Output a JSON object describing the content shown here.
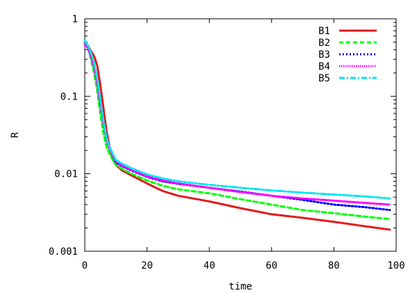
{
  "chart_data": {
    "type": "line",
    "xlabel": "time",
    "ylabel": "R",
    "xlim": [
      0,
      100
    ],
    "ylim": [
      0.001,
      1
    ],
    "y_scale": "log",
    "grid": false,
    "legend_position": "top-right",
    "x_ticks": [
      {
        "value": 0,
        "label": "0"
      },
      {
        "value": 20,
        "label": "20"
      },
      {
        "value": 40,
        "label": "40"
      },
      {
        "value": 60,
        "label": "60"
      },
      {
        "value": 80,
        "label": "80"
      },
      {
        "value": 100,
        "label": "100"
      }
    ],
    "y_ticks": [
      {
        "value": 0.001,
        "label": "0.001"
      },
      {
        "value": 0.01,
        "label": "0.01"
      },
      {
        "value": 0.1,
        "label": "0.1"
      },
      {
        "value": 1,
        "label": "1"
      }
    ],
    "x": [
      0,
      1,
      2,
      3,
      4,
      5,
      6,
      7,
      8,
      9,
      10,
      12,
      15,
      20,
      25,
      30,
      40,
      50,
      60,
      70,
      80,
      90,
      98
    ],
    "series": [
      {
        "name": "B1",
        "color": "#e41a1c",
        "dash": "solid",
        "values": [
          0.5,
          0.45,
          0.38,
          0.33,
          0.25,
          0.14,
          0.07,
          0.035,
          0.022,
          0.016,
          0.013,
          0.011,
          0.0095,
          0.0075,
          0.006,
          0.0052,
          0.0044,
          0.0036,
          0.003,
          0.0027,
          0.0024,
          0.0021,
          0.0019
        ]
      },
      {
        "name": "B2",
        "color": "#00ff00",
        "dash": "dashed",
        "values": [
          0.5,
          0.42,
          0.3,
          0.2,
          0.12,
          0.06,
          0.033,
          0.022,
          0.018,
          0.015,
          0.013,
          0.0115,
          0.01,
          0.0082,
          0.007,
          0.0063,
          0.0056,
          0.0047,
          0.004,
          0.0034,
          0.0031,
          0.0028,
          0.0026
        ]
      },
      {
        "name": "B3",
        "color": "#0000ff",
        "dash": "dotted",
        "values": [
          0.48,
          0.42,
          0.33,
          0.24,
          0.15,
          0.08,
          0.045,
          0.028,
          0.021,
          0.017,
          0.014,
          0.0125,
          0.011,
          0.0091,
          0.008,
          0.0074,
          0.0066,
          0.0059,
          0.0052,
          0.0046,
          0.004,
          0.0037,
          0.0034
        ]
      },
      {
        "name": "B4",
        "color": "#ff00ff",
        "dash": "densely-dotted",
        "values": [
          0.48,
          0.42,
          0.33,
          0.24,
          0.15,
          0.08,
          0.045,
          0.028,
          0.021,
          0.017,
          0.0145,
          0.0128,
          0.0112,
          0.0093,
          0.0082,
          0.0075,
          0.0066,
          0.0058,
          0.0052,
          0.0048,
          0.0045,
          0.0042,
          0.004
        ]
      },
      {
        "name": "B5",
        "color": "#00e5ee",
        "dash": "dash-dot",
        "values": [
          0.52,
          0.45,
          0.36,
          0.27,
          0.17,
          0.09,
          0.048,
          0.029,
          0.022,
          0.018,
          0.015,
          0.0135,
          0.0118,
          0.0098,
          0.0087,
          0.008,
          0.0072,
          0.0066,
          0.0061,
          0.0057,
          0.0054,
          0.0051,
          0.0048
        ]
      }
    ]
  }
}
